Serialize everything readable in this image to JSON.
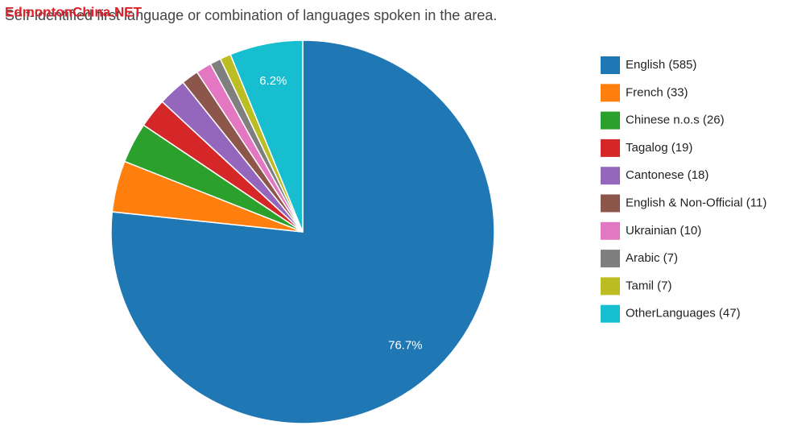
{
  "watermark": "EdmontonChina.NET",
  "chart_data": {
    "type": "pie",
    "title": "Self-identified first language or combination of languages spoken in the area.",
    "categories": [
      "English (585)",
      "French (33)",
      "Chinese n.o.s (26)",
      "Tagalog (19)",
      "Cantonese (18)",
      "English & Non-Official (11)",
      "Ukrainian (10)",
      "Arabic (7)",
      "Tamil (7)",
      "OtherLanguages (47)"
    ],
    "values": [
      585,
      33,
      26,
      19,
      18,
      11,
      10,
      7,
      7,
      47
    ],
    "value_labels": [
      "76.7%",
      null,
      null,
      null,
      null,
      null,
      null,
      null,
      null,
      "6.2%"
    ],
    "colors": [
      "#1f77b4",
      "#ff7f0e",
      "#2ca02c",
      "#d62728",
      "#9467bd",
      "#8c564b",
      "#e377c2",
      "#7f7f7f",
      "#bcbd22",
      "#17becf"
    ],
    "legend": "right"
  }
}
